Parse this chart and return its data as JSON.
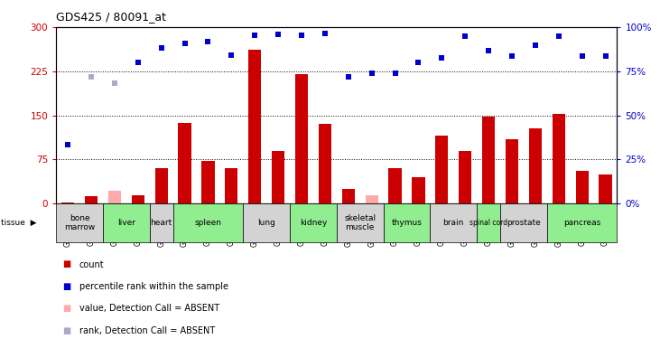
{
  "title": "GDS425 / 80091_at",
  "samples": [
    "GSM12637",
    "GSM12726",
    "GSM12642",
    "GSM12721",
    "GSM12647",
    "GSM12667",
    "GSM12652",
    "GSM12672",
    "GSM12657",
    "GSM12701",
    "GSM12662",
    "GSM12731",
    "GSM12677",
    "GSM12696",
    "GSM12686",
    "GSM12716",
    "GSM12691",
    "GSM12711",
    "GSM12681",
    "GSM12706",
    "GSM12736",
    "GSM12746",
    "GSM12741",
    "GSM12751"
  ],
  "count_values": [
    2,
    12,
    22,
    14,
    60,
    137,
    72,
    60,
    262,
    90,
    220,
    135,
    24,
    14,
    60,
    45,
    115,
    90,
    148,
    110,
    128,
    152,
    55,
    50
  ],
  "rank_values": [
    100,
    215,
    205,
    240,
    265,
    272,
    276,
    253,
    286,
    287,
    286,
    290,
    215,
    222,
    222,
    240,
    248,
    285,
    260,
    250,
    270,
    285,
    250,
    250
  ],
  "absent_count": [
    false,
    false,
    true,
    false,
    false,
    false,
    false,
    false,
    false,
    false,
    false,
    false,
    false,
    true,
    false,
    false,
    false,
    false,
    false,
    false,
    false,
    false,
    false,
    false
  ],
  "absent_rank": [
    false,
    true,
    true,
    false,
    false,
    false,
    false,
    false,
    false,
    false,
    false,
    false,
    false,
    false,
    false,
    false,
    false,
    false,
    false,
    false,
    false,
    false,
    false,
    false
  ],
  "tissues": [
    {
      "name": "bone\nmarrow",
      "start": 0,
      "end": 2,
      "color": "#d3d3d3"
    },
    {
      "name": "liver",
      "start": 2,
      "end": 4,
      "color": "#90ee90"
    },
    {
      "name": "heart",
      "start": 4,
      "end": 5,
      "color": "#d3d3d3"
    },
    {
      "name": "spleen",
      "start": 5,
      "end": 8,
      "color": "#90ee90"
    },
    {
      "name": "lung",
      "start": 8,
      "end": 10,
      "color": "#d3d3d3"
    },
    {
      "name": "kidney",
      "start": 10,
      "end": 12,
      "color": "#90ee90"
    },
    {
      "name": "skeletal\nmuscle",
      "start": 12,
      "end": 14,
      "color": "#d3d3d3"
    },
    {
      "name": "thymus",
      "start": 14,
      "end": 16,
      "color": "#90ee90"
    },
    {
      "name": "brain",
      "start": 16,
      "end": 18,
      "color": "#d3d3d3"
    },
    {
      "name": "spinal cord",
      "start": 18,
      "end": 19,
      "color": "#90ee90"
    },
    {
      "name": "prostate",
      "start": 19,
      "end": 21,
      "color": "#d3d3d3"
    },
    {
      "name": "pancreas",
      "start": 21,
      "end": 24,
      "color": "#90ee90"
    }
  ],
  "ylim_left": [
    0,
    300
  ],
  "ylim_right": [
    0,
    100
  ],
  "yticks_left": [
    0,
    75,
    150,
    225,
    300
  ],
  "yticks_right": [
    0,
    25,
    50,
    75,
    100
  ],
  "bar_color_present": "#cc0000",
  "bar_color_absent": "#ffaaaa",
  "rank_color_present": "#0000cc",
  "rank_color_absent": "#aaaacc",
  "bar_width": 0.55,
  "fig_width": 7.31,
  "fig_height": 3.75,
  "dpi": 100
}
